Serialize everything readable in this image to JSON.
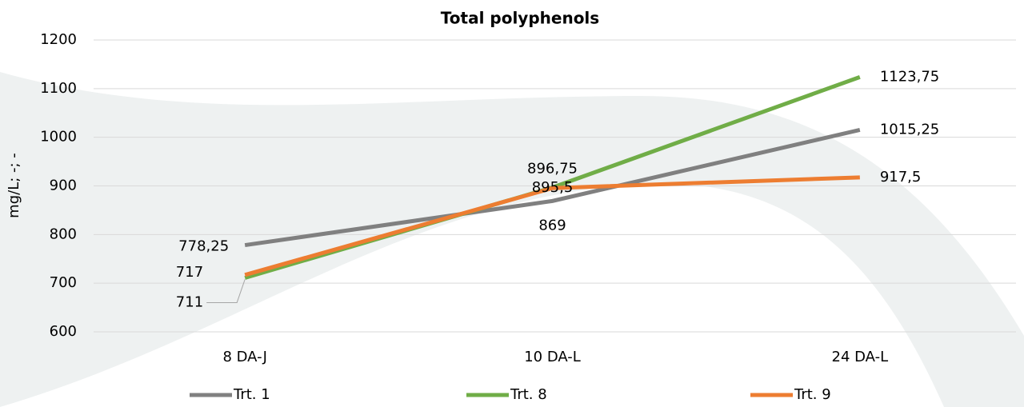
{
  "chart_data": {
    "type": "line",
    "title": "Total polyphenols",
    "y_label": "mg/L; -; -",
    "categories": [
      "8 DA-J",
      "10 DA-L",
      "24 DA-L"
    ],
    "series": [
      {
        "name": "Trt. 1",
        "color": "#808080",
        "values": [
          778.25,
          869,
          1015.25
        ],
        "value_labels": [
          "778,25",
          "869",
          "1015,25"
        ]
      },
      {
        "name": "Trt. 8",
        "color": "#70ad47",
        "values": [
          711,
          896.75,
          1123.75
        ],
        "value_labels": [
          "711",
          "896,75",
          "1123,75"
        ]
      },
      {
        "name": "Trt. 9",
        "color": "#ed7d31",
        "values": [
          717,
          895.5,
          917.5
        ],
        "value_labels": [
          "717",
          "895,5",
          "917,5"
        ]
      }
    ],
    "ylim": [
      600,
      1200
    ],
    "yticks": [
      600,
      700,
      800,
      900,
      1000,
      1100,
      1200
    ],
    "grid": true,
    "legend": "bottom"
  }
}
